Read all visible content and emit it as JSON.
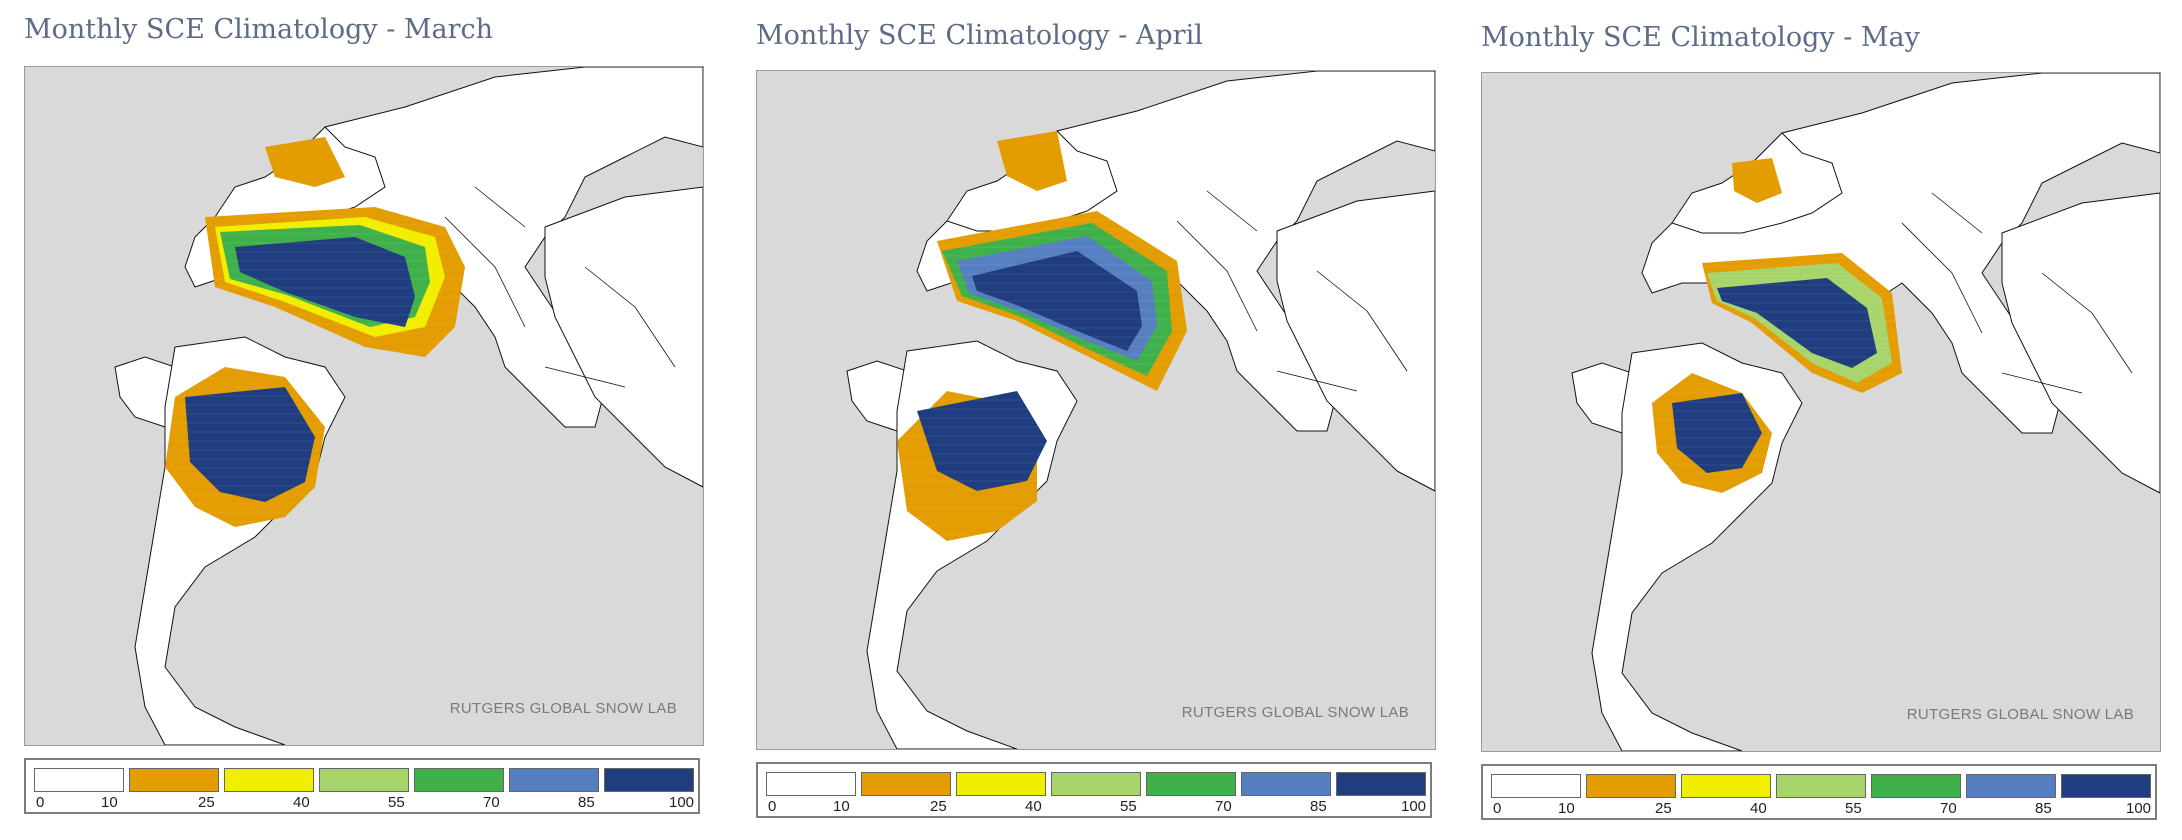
{
  "panels": [
    {
      "title": "Monthly SCE Climatology - March",
      "credit": "RUTGERS GLOBAL SNOW LAB",
      "month": "March"
    },
    {
      "title": "Monthly SCE Climatology - April",
      "credit": "RUTGERS GLOBAL SNOW LAB",
      "month": "April"
    },
    {
      "title": "Monthly SCE Climatology - May",
      "credit": "RUTGERS GLOBAL SNOW LAB",
      "month": "May"
    }
  ],
  "legend": {
    "classes": [
      {
        "color": "#ffffff"
      },
      {
        "color": "#e39d00"
      },
      {
        "color": "#f2ee00"
      },
      {
        "color": "#a8d46c"
      },
      {
        "color": "#3fb04a"
      },
      {
        "color": "#567fc1"
      },
      {
        "color": "#1f3d7f"
      }
    ],
    "ticks": [
      "0",
      "10",
      "25",
      "40",
      "55",
      "70",
      "85",
      "100"
    ]
  },
  "colors": {
    "ocean": "#d9d9d9",
    "land": "#ffffff",
    "border": "#111111",
    "title": "#5c6b87"
  }
}
